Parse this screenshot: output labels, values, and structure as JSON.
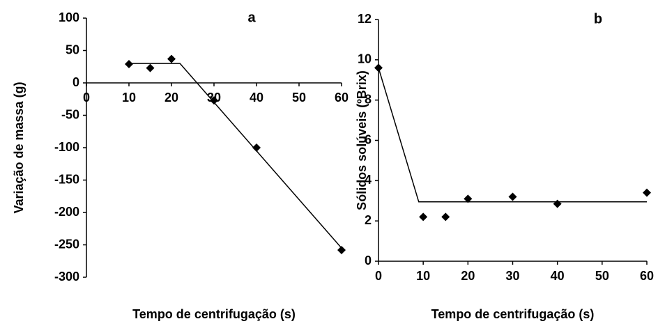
{
  "chart_data": [
    {
      "type": "scatter",
      "title": "a",
      "x_label": "Tempo de centrifugação (s)",
      "y_label": "Variação de massa (g)",
      "xlim": [
        0,
        60
      ],
      "xticks": [
        0,
        10,
        20,
        30,
        40,
        50,
        60
      ],
      "ylim": [
        -300,
        100
      ],
      "yticks": [
        -300,
        -250,
        -200,
        -150,
        -100,
        -50,
        0,
        50,
        100
      ],
      "series": [
        {
          "mode": "markers",
          "color": "#000000",
          "x": [
            10,
            15,
            20,
            30,
            40,
            60
          ],
          "values": [
            29,
            23,
            37,
            -27,
            -100,
            -258
          ]
        },
        {
          "mode": "lines",
          "color": "#000000",
          "x": [
            10,
            22,
            60
          ],
          "values": [
            30,
            30,
            -255
          ]
        }
      ]
    },
    {
      "type": "scatter",
      "title": "b",
      "x_label": "Tempo de centrifugação (s)",
      "y_label": "Sólidos solúveis (ºBrix)",
      "xlim": [
        0,
        60
      ],
      "xticks": [
        0,
        10,
        20,
        30,
        40,
        50,
        60
      ],
      "ylim": [
        0,
        12
      ],
      "yticks": [
        0,
        2,
        4,
        6,
        8,
        10,
        12
      ],
      "series": [
        {
          "mode": "markers",
          "color": "#000000",
          "x": [
            0,
            10,
            15,
            20,
            30,
            40,
            60
          ],
          "values": [
            9.6,
            2.2,
            2.2,
            3.1,
            3.2,
            2.85,
            3.4
          ]
        },
        {
          "mode": "lines",
          "color": "#000000",
          "x": [
            0,
            9,
            60
          ],
          "values": [
            9.6,
            2.95,
            2.95
          ]
        }
      ]
    }
  ]
}
